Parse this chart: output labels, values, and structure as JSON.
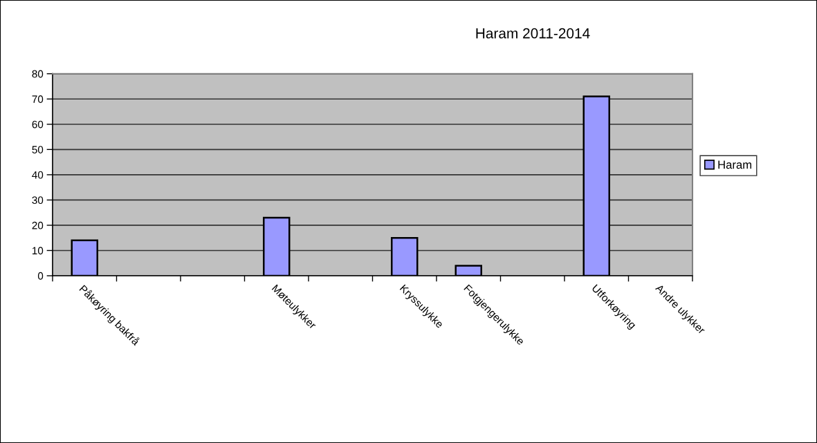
{
  "chart_data": {
    "type": "bar",
    "title": "Haram 2011-2014",
    "categories": [
      "Påkøyring bakfrå",
      null,
      null,
      "Møteulykker",
      null,
      "Kryssulykke",
      "Fotgjengerulykke",
      null,
      "Utforkøyring",
      "Andre ulykker"
    ],
    "series": [
      {
        "name": "Haram",
        "color": "#9999ff",
        "values": [
          14,
          null,
          null,
          23,
          null,
          15,
          4,
          null,
          71,
          null
        ]
      }
    ],
    "ylim": [
      0,
      80
    ],
    "yticks": [
      0,
      10,
      20,
      30,
      40,
      50,
      60,
      70,
      80
    ],
    "grid": "y",
    "legend": "right"
  }
}
